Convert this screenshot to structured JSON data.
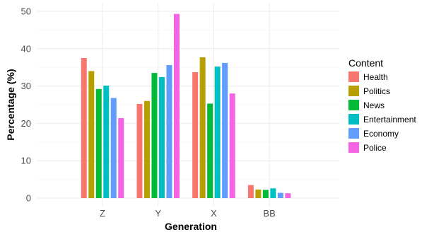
{
  "chart_data": {
    "type": "bar",
    "title": "",
    "xlabel": "Generation",
    "ylabel": "Percentage (%)",
    "categories": [
      "Z",
      "Y",
      "X",
      "BB"
    ],
    "ylim": [
      0,
      50
    ],
    "yticks": [
      0,
      10,
      20,
      30,
      40,
      50
    ],
    "grid": true,
    "legend": {
      "title": "Content",
      "placement": "right"
    },
    "series": [
      {
        "name": "Health",
        "color": "#F8766D",
        "values": [
          37.5,
          25.2,
          33.7,
          3.5
        ]
      },
      {
        "name": "Politics",
        "color": "#B79F00",
        "values": [
          34.0,
          26.0,
          37.7,
          2.3
        ]
      },
      {
        "name": "News",
        "color": "#00BA38",
        "values": [
          29.2,
          33.5,
          25.3,
          2.2
        ]
      },
      {
        "name": "Entertainment",
        "color": "#00BFC4",
        "values": [
          30.1,
          32.4,
          35.2,
          2.6
        ]
      },
      {
        "name": "Economy",
        "color": "#619CFF",
        "values": [
          26.8,
          35.6,
          36.2,
          1.4
        ]
      },
      {
        "name": "Police",
        "color": "#F564E3",
        "values": [
          21.4,
          49.3,
          28.0,
          1.3
        ]
      }
    ]
  }
}
